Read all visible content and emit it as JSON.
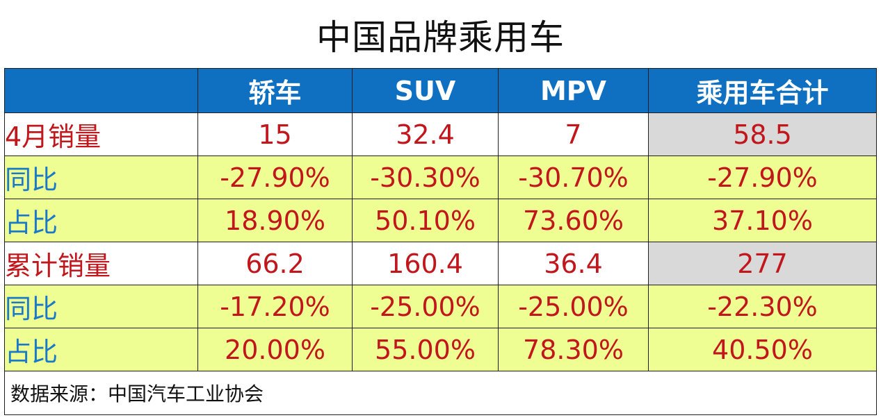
{
  "title": "中国品牌乘用车",
  "table": {
    "headers": [
      "",
      "轿车",
      "SUV",
      "MPV",
      "乘用车合计"
    ],
    "rows": [
      {
        "label": "4月销量",
        "values": [
          "15",
          "32.4",
          "7",
          "58.5"
        ]
      },
      {
        "label": "同比",
        "values": [
          "-27.90%",
          "-30.30%",
          "-30.70%",
          "-27.90%"
        ]
      },
      {
        "label": "占比",
        "values": [
          "18.90%",
          "50.10%",
          "73.60%",
          "37.10%"
        ]
      },
      {
        "label": "累计销量",
        "values": [
          "66.2",
          "160.4",
          "36.4",
          "277"
        ]
      },
      {
        "label": "同比",
        "values": [
          "-17.20%",
          "-25.00%",
          "-25.00%",
          "-22.30%"
        ]
      },
      {
        "label": "占比",
        "values": [
          "20.00%",
          "55.00%",
          "78.30%",
          "40.50%"
        ]
      }
    ],
    "source": "数据来源：中国汽车工业协会"
  },
  "colors": {
    "header_bg": "#0f6fc1",
    "value_text": "#c0161c",
    "ratio_label": "#1b79c9",
    "highlight_row_bg": "#eefe92",
    "total_cell_bg": "#d9d9d9"
  }
}
